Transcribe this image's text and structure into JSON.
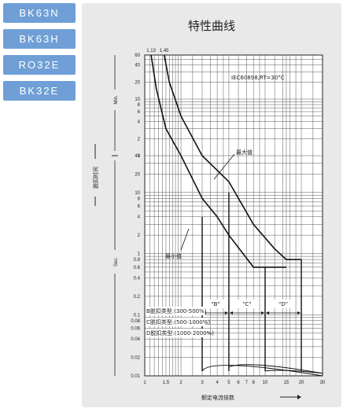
{
  "tabs": [
    {
      "label": "BK63N"
    },
    {
      "label": "BK63H"
    },
    {
      "label": "RO32E"
    },
    {
      "label": "BK32E"
    }
  ],
  "chart_data": {
    "type": "line",
    "title": "特性曲线",
    "xlabel": "额定电流倍数",
    "ylabel": "脱扣时间",
    "x_scale": "log",
    "y_scale": "log",
    "xlim": [
      1,
      30
    ],
    "x_ticks": [
      "1",
      "1.5",
      "2",
      "3",
      "4",
      "5",
      "6",
      "7",
      "8",
      "10",
      "15",
      "20",
      "30"
    ],
    "x_top_ticks": [
      "1.13",
      "1.45"
    ],
    "y_ticks_min": [
      "60",
      "40",
      "20",
      "10",
      "8",
      "6",
      "4",
      "2",
      "1"
    ],
    "y_ticks_sec": [
      "40",
      "20",
      "10",
      "8",
      "6",
      "4",
      "2",
      "1",
      "0.8",
      "0.6",
      "0.4",
      "0.2",
      "0.1",
      "0.08",
      "0.06",
      "0.04",
      "0.02",
      "0.01"
    ],
    "y_unit_min": "Min.",
    "y_unit_sec": "Sec.",
    "standard": "IEC60898,RT=30°C",
    "series": [
      {
        "name": "最大值",
        "points": [
          [
            1.45,
            3600
          ],
          [
            1.6,
            1200
          ],
          [
            2,
            300
          ],
          [
            3,
            60
          ],
          [
            5,
            15
          ],
          [
            8,
            3
          ],
          [
            12,
            1.2
          ],
          [
            15,
            0.8
          ],
          [
            20,
            0.8
          ]
        ]
      },
      {
        "name": "最小值",
        "points": [
          [
            1.13,
            3600
          ],
          [
            1.25,
            900
          ],
          [
            1.5,
            180
          ],
          [
            2,
            40
          ],
          [
            3,
            8
          ],
          [
            4,
            4
          ],
          [
            5,
            2
          ],
          [
            8,
            0.6
          ],
          [
            10,
            0.6
          ],
          [
            15,
            0.6
          ]
        ]
      }
    ],
    "zones": [
      {
        "label": "\"B\"",
        "from": 3,
        "to": 5
      },
      {
        "label": "\"C\"",
        "from": 5,
        "to": 10
      },
      {
        "label": "\"D\"",
        "from": 10,
        "to": 20
      }
    ],
    "notes": [
      "B脱扣类型:(300-500%)",
      "C脱扣类型:(500-1000%)",
      "D脱扣类型:(1000-2000%)"
    ]
  }
}
